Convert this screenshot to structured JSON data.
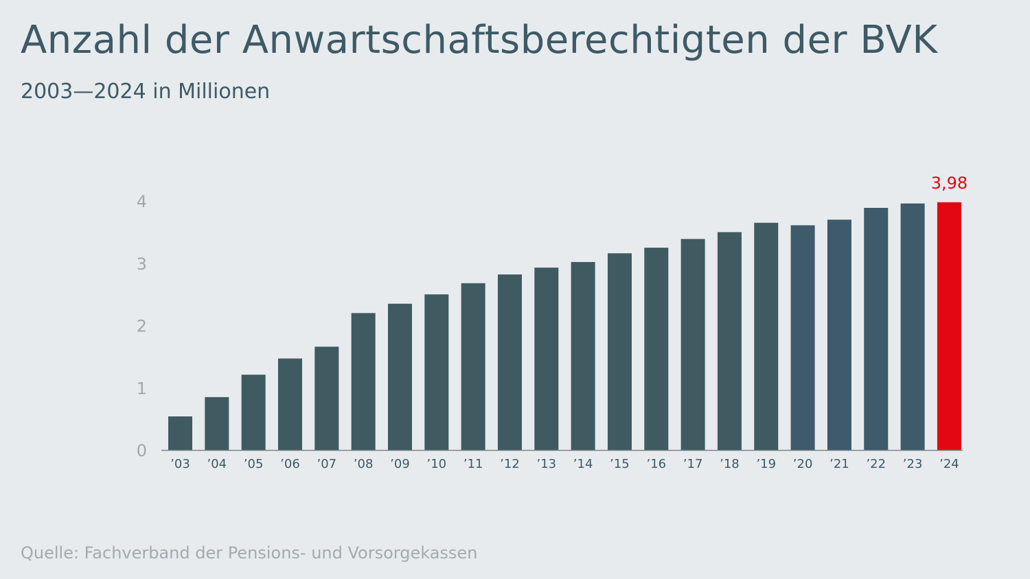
{
  "title": "Anzahl der Anwartschaftsberechtigten der BVK",
  "subtitle": "2003—2024 in Millionen",
  "source": "Quelle: Fachverband der Pensions- und Vorsorgekassen",
  "chart_data": {
    "type": "bar",
    "title": "Anzahl der Anwartschaftsberechtigten der BVK",
    "subtitle": "2003—2024 in Millionen",
    "categories": [
      "’03",
      "’04",
      "’05",
      "’06",
      "’07",
      "’08",
      "’09",
      "’10",
      "’11",
      "’12",
      "’13",
      "’14",
      "’15",
      "’16",
      "’17",
      "’18",
      "’19",
      "’20",
      "’21",
      "’22",
      "’23",
      "’24"
    ],
    "values": [
      0.54,
      0.85,
      1.21,
      1.47,
      1.66,
      2.2,
      2.35,
      2.5,
      2.68,
      2.82,
      2.93,
      3.02,
      3.16,
      3.25,
      3.39,
      3.5,
      3.65,
      3.61,
      3.7,
      3.89,
      3.96,
      3.98
    ],
    "ylim": [
      0,
      4
    ],
    "yticks": [
      "0",
      "1",
      "2",
      "3",
      "4"
    ],
    "grid": false,
    "annotation": {
      "category": "’24",
      "label": "3,98"
    },
    "colors": {
      "bar": "#405a62",
      "bar_recent": "#3e5a6b",
      "highlight": "#e30613",
      "tick": "#a0a8ab",
      "axis": "#7a858a"
    }
  }
}
